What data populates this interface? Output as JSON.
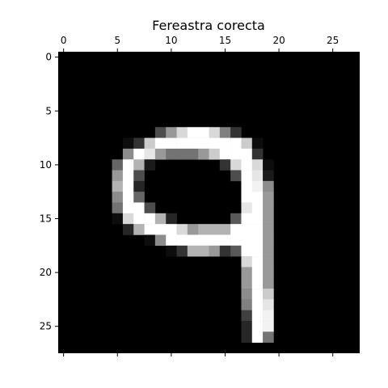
{
  "chart_data": {
    "type": "heatmap",
    "title": "Fereastra corecta",
    "colormap": "gray",
    "value_range": [
      0,
      1
    ],
    "grid": false,
    "x_axis_position": "top",
    "xlim": [
      -0.5,
      27.5
    ],
    "ylim": [
      27.5,
      -0.5
    ],
    "x_ticks": [
      0,
      5,
      10,
      15,
      20,
      25
    ],
    "y_ticks": [
      0,
      5,
      10,
      15,
      20,
      25
    ],
    "bottom_ticks_without_labels": true,
    "rows": 28,
    "cols": 28,
    "pixels": [
      [
        7,
        [
          [
            9,
            0.3
          ],
          [
            10,
            0.6
          ],
          [
            11,
            0.85
          ],
          [
            12,
            1
          ],
          [
            13,
            1
          ],
          [
            14,
            0.85
          ],
          [
            15,
            0.5
          ],
          [
            16,
            0.2
          ]
        ]
      ],
      [
        8,
        [
          [
            6,
            0.05
          ],
          [
            7,
            0.2
          ],
          [
            8,
            0.8
          ],
          [
            9,
            1
          ],
          [
            10,
            1
          ],
          [
            11,
            1
          ],
          [
            12,
            1
          ],
          [
            13,
            1
          ],
          [
            14,
            1
          ],
          [
            15,
            1
          ],
          [
            16,
            1
          ],
          [
            17,
            0.8
          ],
          [
            18,
            0.05
          ]
        ]
      ],
      [
        9,
        [
          [
            6,
            0.55
          ],
          [
            7,
            1
          ],
          [
            8,
            0.9
          ],
          [
            9,
            0.6
          ],
          [
            10,
            0.45
          ],
          [
            11,
            0.45
          ],
          [
            12,
            0.45
          ],
          [
            13,
            0.6
          ],
          [
            14,
            0.8
          ],
          [
            15,
            1
          ],
          [
            16,
            1
          ],
          [
            17,
            1
          ],
          [
            18,
            0.2
          ]
        ]
      ],
      [
        10,
        [
          [
            5,
            0.4
          ],
          [
            6,
            1
          ],
          [
            7,
            0.7
          ],
          [
            8,
            0.1
          ],
          [
            15,
            0.2
          ],
          [
            16,
            0.85
          ],
          [
            17,
            1
          ],
          [
            18,
            0.85
          ],
          [
            19,
            0.05
          ]
        ]
      ],
      [
        11,
        [
          [
            5,
            0.6
          ],
          [
            6,
            1
          ],
          [
            7,
            0.3
          ],
          [
            16,
            0.3
          ],
          [
            17,
            1
          ],
          [
            18,
            0.9
          ],
          [
            19,
            0.1
          ]
        ]
      ],
      [
        12,
        [
          [
            5,
            0.7
          ],
          [
            6,
            1
          ],
          [
            7,
            0.15
          ],
          [
            17,
            1
          ],
          [
            18,
            0.95
          ],
          [
            19,
            0.55
          ]
        ]
      ],
      [
        13,
        [
          [
            5,
            0.55
          ],
          [
            6,
            1
          ],
          [
            7,
            0.4
          ],
          [
            17,
            1
          ],
          [
            18,
            1
          ],
          [
            19,
            0.6
          ]
        ]
      ],
      [
        14,
        [
          [
            5,
            0.45
          ],
          [
            6,
            1
          ],
          [
            7,
            1
          ],
          [
            8,
            0.3
          ],
          [
            17,
            0.9
          ],
          [
            18,
            1
          ],
          [
            19,
            0.6
          ]
        ]
      ],
      [
        15,
        [
          [
            5,
            0.05
          ],
          [
            6,
            0.85
          ],
          [
            7,
            1
          ],
          [
            8,
            1
          ],
          [
            9,
            0.7
          ],
          [
            10,
            0.15
          ],
          [
            16,
            0.35
          ],
          [
            17,
            1
          ],
          [
            18,
            1
          ],
          [
            19,
            0.6
          ]
        ]
      ],
      [
        16,
        [
          [
            6,
            0.15
          ],
          [
            7,
            0.7
          ],
          [
            8,
            1
          ],
          [
            9,
            1
          ],
          [
            10,
            1
          ],
          [
            11,
            0.85
          ],
          [
            12,
            0.6
          ],
          [
            13,
            0.7
          ],
          [
            14,
            0.7
          ],
          [
            15,
            0.7
          ],
          [
            16,
            1
          ],
          [
            17,
            1
          ],
          [
            18,
            1
          ],
          [
            19,
            0.6
          ]
        ]
      ],
      [
        17,
        [
          [
            8,
            0.05
          ],
          [
            9,
            0.55
          ],
          [
            10,
            1
          ],
          [
            11,
            1
          ],
          [
            12,
            1
          ],
          [
            13,
            1
          ],
          [
            14,
            1
          ],
          [
            15,
            1
          ],
          [
            16,
            1
          ],
          [
            17,
            1
          ],
          [
            18,
            1
          ],
          [
            19,
            0.6
          ]
        ]
      ],
      [
        18,
        [
          [
            10,
            0.05
          ],
          [
            11,
            0.2
          ],
          [
            12,
            0.7
          ],
          [
            13,
            0.7
          ],
          [
            14,
            0.6
          ],
          [
            15,
            0.2
          ],
          [
            16,
            0.35
          ],
          [
            17,
            1
          ],
          [
            18,
            1
          ],
          [
            19,
            0.6
          ]
        ]
      ],
      [
        19,
        [
          [
            17,
            0.85
          ],
          [
            18,
            1
          ],
          [
            19,
            0.6
          ]
        ]
      ],
      [
        20,
        [
          [
            17,
            0.6
          ],
          [
            18,
            1
          ],
          [
            19,
            0.6
          ]
        ]
      ],
      [
        21,
        [
          [
            17,
            0.6
          ],
          [
            18,
            1
          ],
          [
            19,
            0.6
          ]
        ]
      ],
      [
        22,
        [
          [
            17,
            0.55
          ],
          [
            18,
            1
          ],
          [
            19,
            0.8
          ]
        ]
      ],
      [
        23,
        [
          [
            17,
            0.5
          ],
          [
            18,
            1
          ],
          [
            19,
            0.9
          ]
        ]
      ],
      [
        24,
        [
          [
            17,
            0.25
          ],
          [
            18,
            1
          ],
          [
            19,
            0.95
          ]
        ]
      ],
      [
        25,
        [
          [
            17,
            0.15
          ],
          [
            18,
            1
          ],
          [
            19,
            0.95
          ]
        ]
      ],
      [
        26,
        [
          [
            17,
            0.15
          ],
          [
            18,
            1
          ],
          [
            19,
            0.45
          ]
        ]
      ]
    ]
  }
}
